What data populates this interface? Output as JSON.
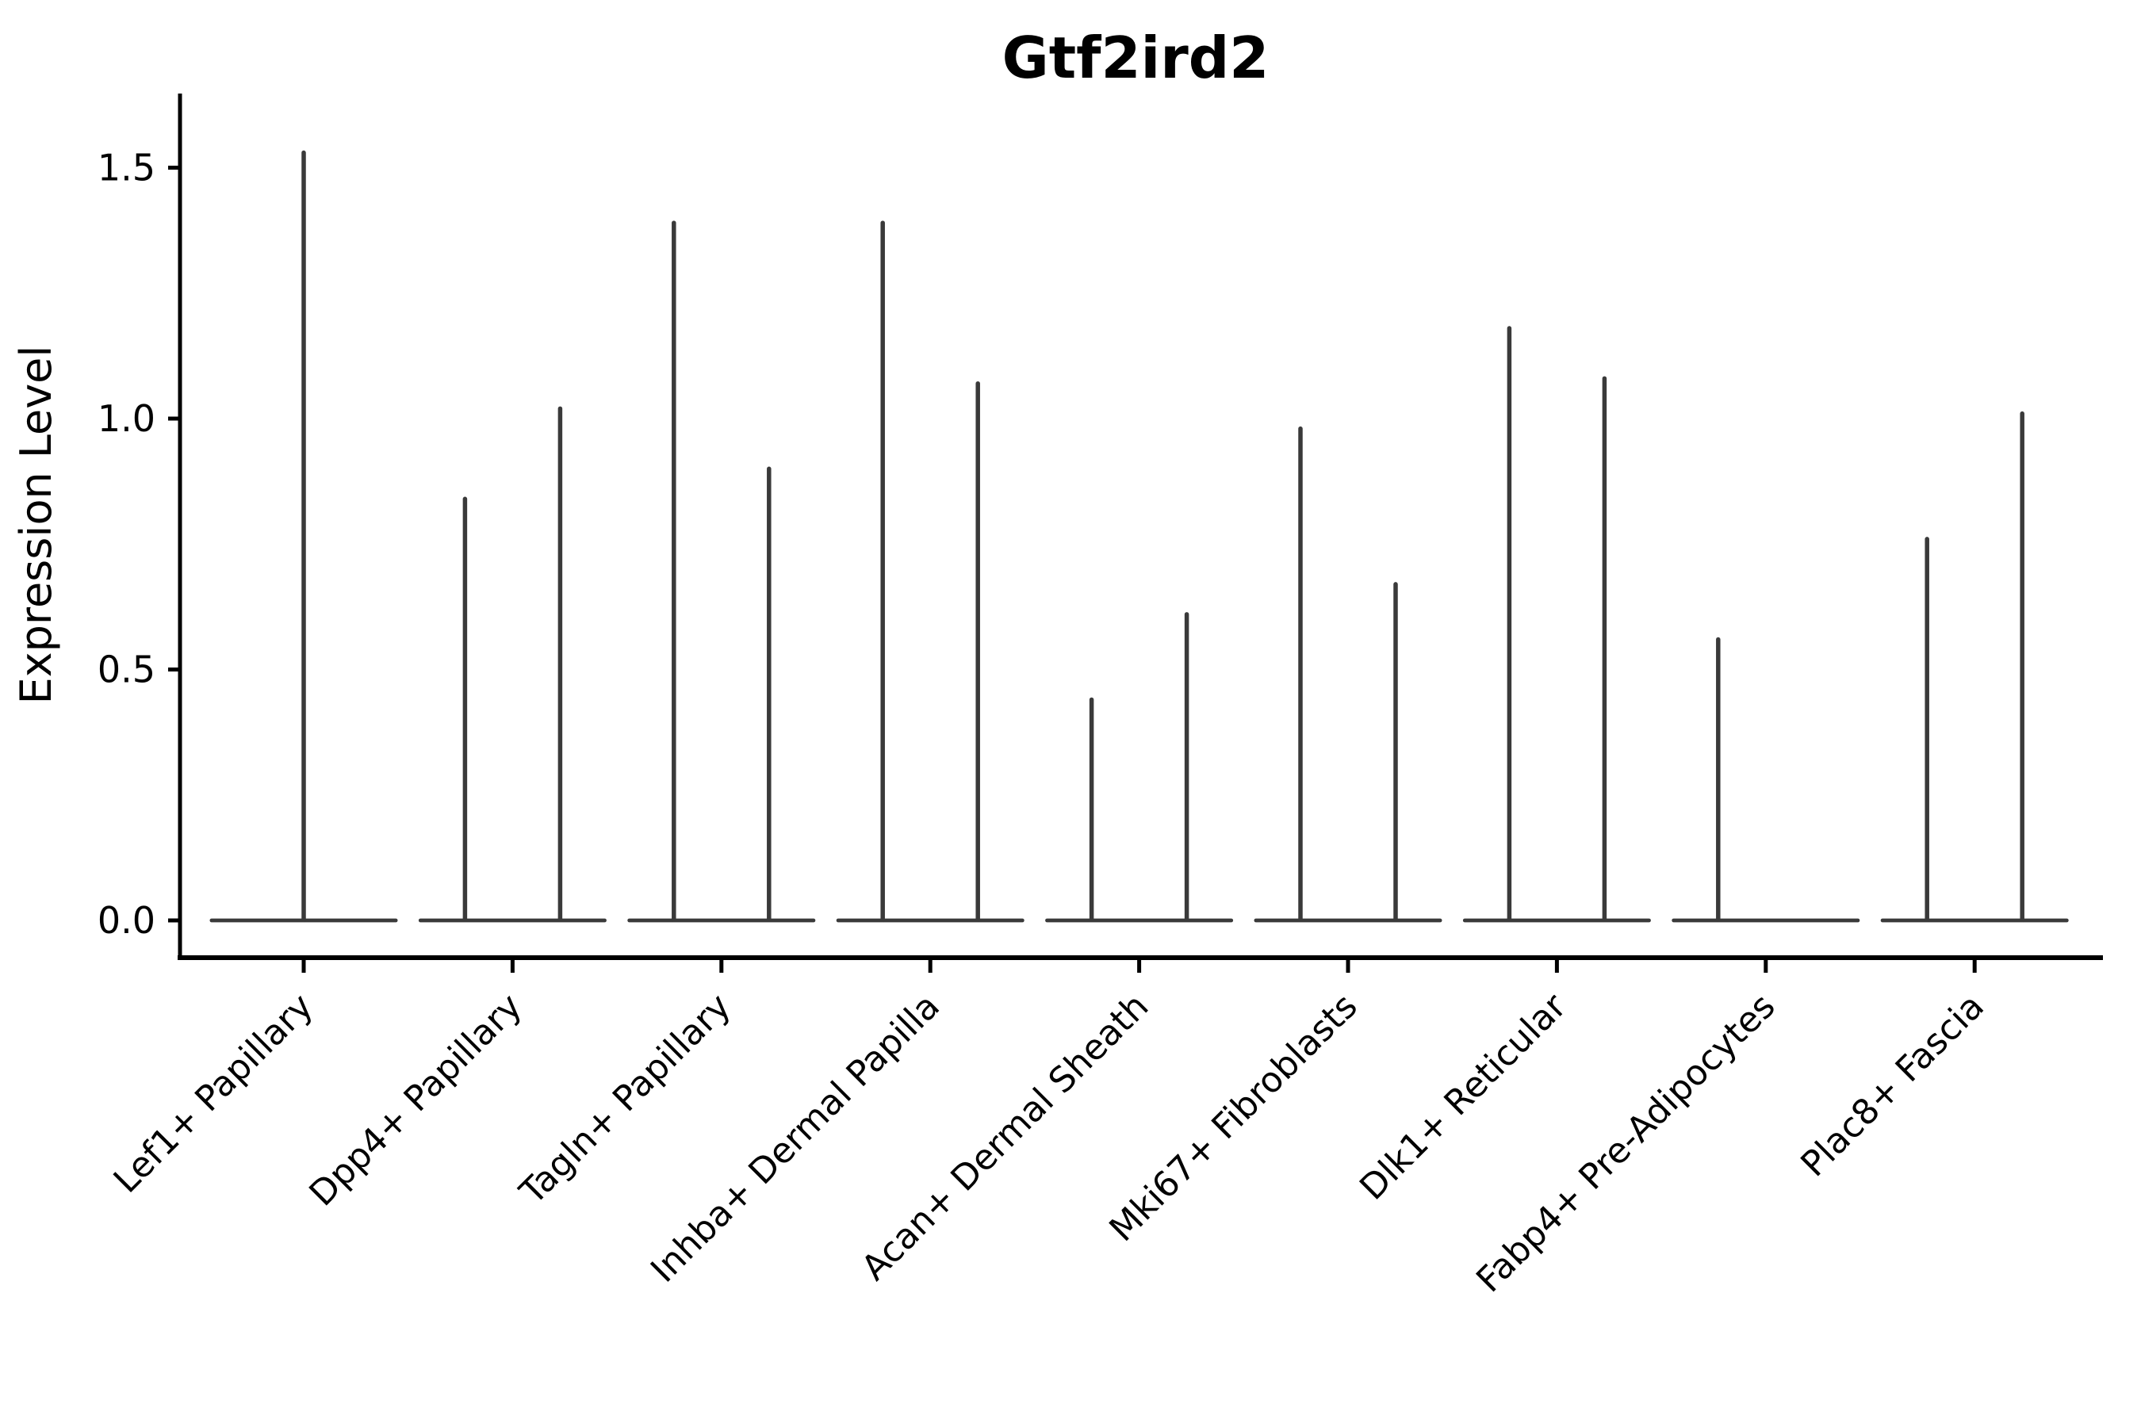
{
  "title": "Gtf2ird2",
  "colors": {
    "background": "#ffffff",
    "violin": "#3a3a3a",
    "axis": "#000000",
    "text": "#000000"
  },
  "chart_data": {
    "type": "violin",
    "title": "Gtf2ird2",
    "xlabel": "",
    "ylabel": "Expression Level",
    "grid": false,
    "legend": "none",
    "ylim": [
      -0.07,
      1.64
    ],
    "y_ticks": [
      0.0,
      0.5,
      1.0,
      1.5
    ],
    "y_tick_labels": [
      "0.0",
      "0.5",
      "1.0",
      "1.5"
    ],
    "categories": [
      "Lef1+ Papillary",
      "Dpp4+ Papillary",
      "Tagln+ Papillary",
      "Inhba+ Dermal Papilla",
      "Acan+ Dermal Sheath",
      "Mki67+ Fibroblasts",
      "Dlk1+ Reticular",
      "Fabp4+ Pre-Adipocytes",
      "Plac8+ Fascia"
    ],
    "violin_style": "sparse expression: wide flat base at 0 with thin vertical spike(s) up to max expression; most categories show two dodged violins, Lef1+ Papillary a single centered violin, Fabp4+ Pre-Adipocytes right violin is flat (all zeros)",
    "series": [
      {
        "category": "Lef1+ Papillary",
        "violins": [
          {
            "position": "center",
            "max": 1.53
          }
        ]
      },
      {
        "category": "Dpp4+ Papillary",
        "violins": [
          {
            "position": "left",
            "max": 0.84
          },
          {
            "position": "right",
            "max": 1.02
          }
        ]
      },
      {
        "category": "Tagln+ Papillary",
        "violins": [
          {
            "position": "left",
            "max": 1.39
          },
          {
            "position": "right",
            "max": 0.9
          }
        ]
      },
      {
        "category": "Inhba+ Dermal Papilla",
        "violins": [
          {
            "position": "left",
            "max": 1.39
          },
          {
            "position": "right",
            "max": 1.07
          }
        ]
      },
      {
        "category": "Acan+ Dermal Sheath",
        "violins": [
          {
            "position": "left",
            "max": 0.44
          },
          {
            "position": "right",
            "max": 0.61
          }
        ]
      },
      {
        "category": "Mki67+ Fibroblasts",
        "violins": [
          {
            "position": "left",
            "max": 0.98
          },
          {
            "position": "right",
            "max": 0.67
          }
        ]
      },
      {
        "category": "Dlk1+ Reticular",
        "violins": [
          {
            "position": "left",
            "max": 1.18
          },
          {
            "position": "right",
            "max": 1.08
          }
        ]
      },
      {
        "category": "Fabp4+ Pre-Adipocytes",
        "violins": [
          {
            "position": "left",
            "max": 0.56
          },
          {
            "position": "right",
            "max": 0.0
          }
        ]
      },
      {
        "category": "Plac8+ Fascia",
        "violins": [
          {
            "position": "left",
            "max": 0.76
          },
          {
            "position": "right",
            "max": 1.01
          }
        ]
      }
    ]
  }
}
